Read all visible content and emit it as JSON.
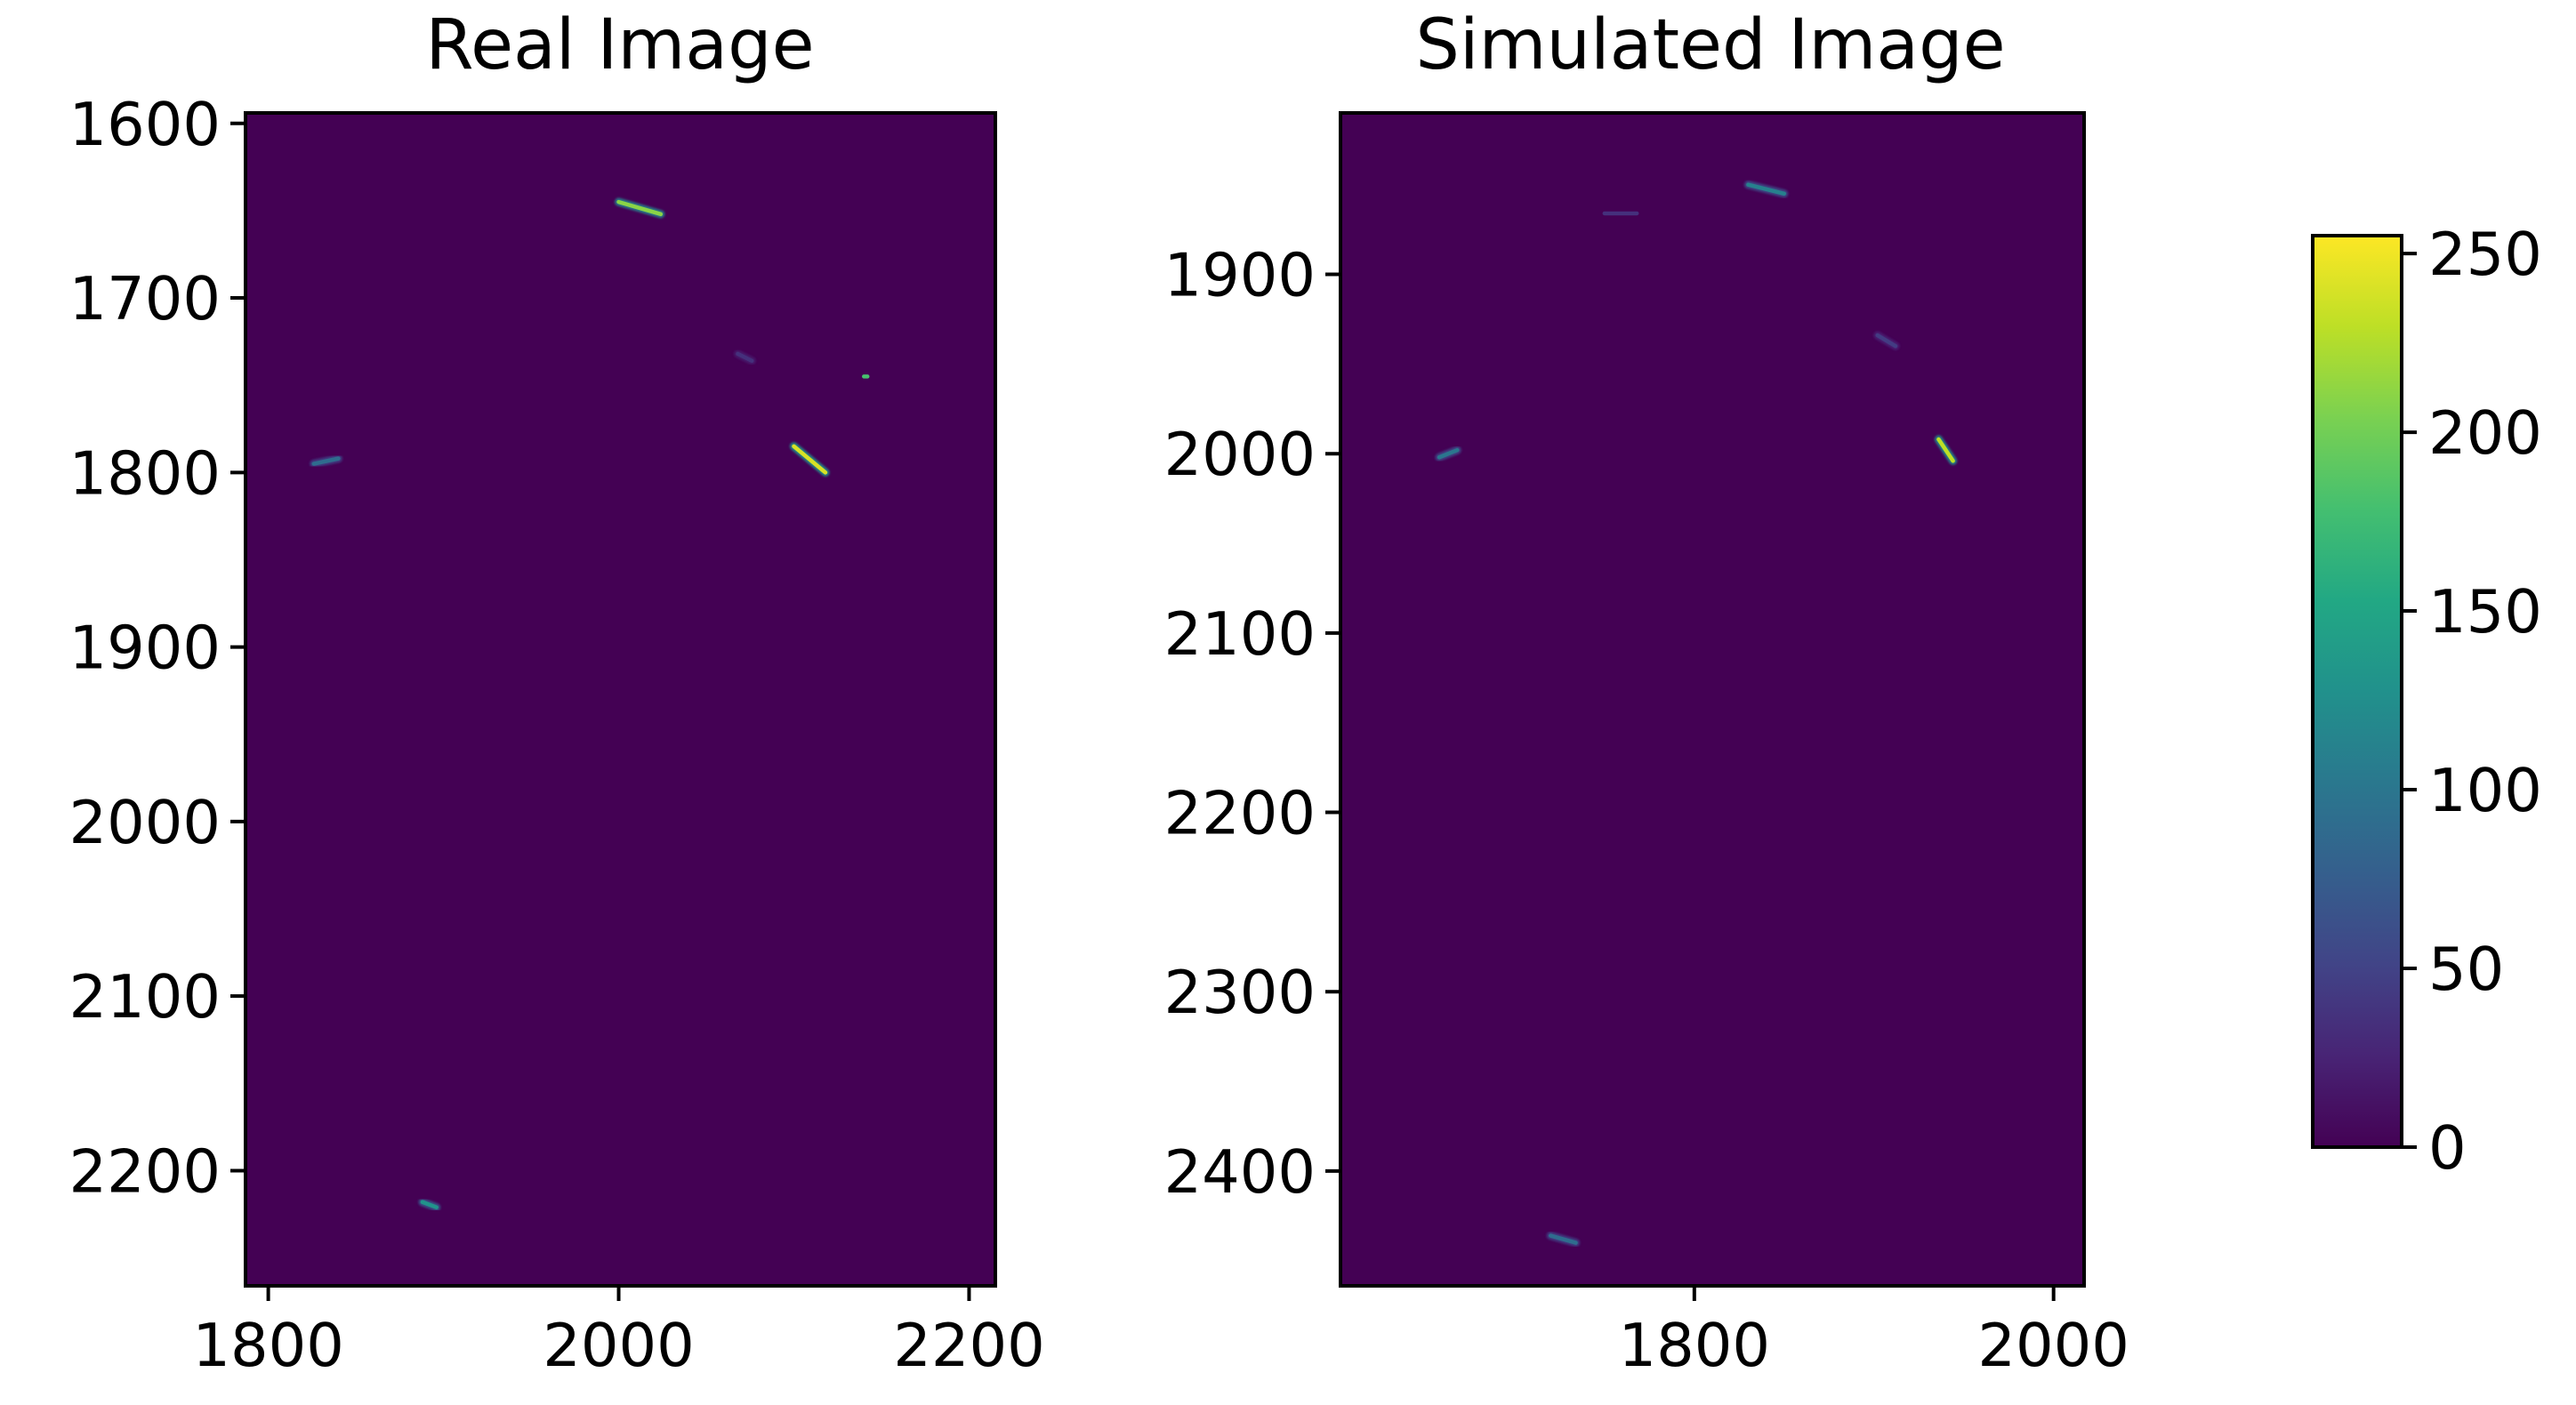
{
  "figure": {
    "colormap": "viridis",
    "background_color": "#440154",
    "colors": {
      "cmap_0": "#440154",
      "cmap_50": "#414487",
      "cmap_100": "#2a788e",
      "cmap_150": "#22a884",
      "cmap_200": "#7ad151",
      "cmap_250": "#fde725"
    }
  },
  "chart_data": [
    {
      "type": "heatmap",
      "title": "Real Image",
      "xlabel": "",
      "ylabel": "",
      "xlim": [
        1787,
        2215
      ],
      "ylim": [
        2266,
        1594
      ],
      "x_ticks": [
        1800,
        2000,
        2200
      ],
      "y_ticks": [
        1600,
        1700,
        1800,
        1900,
        2000,
        2100,
        2200
      ],
      "features": [
        {
          "x": 2000,
          "y": 1645,
          "dx": 24,
          "dy": 7,
          "intensity": 210
        },
        {
          "x": 2100,
          "y": 1785,
          "dx": 18,
          "dy": 15,
          "intensity": 240
        },
        {
          "x": 2140,
          "y": 1745,
          "dx": 2,
          "dy": 0,
          "intensity": 180
        },
        {
          "x": 1826,
          "y": 1795,
          "dx": 14,
          "dy": -3,
          "intensity": 90
        },
        {
          "x": 1888,
          "y": 2218,
          "dx": 8,
          "dy": 3,
          "intensity": 130
        },
        {
          "x": 2068,
          "y": 1732,
          "dx": 8,
          "dy": 4,
          "intensity": 35
        }
      ]
    },
    {
      "type": "heatmap",
      "title": "Simulated Image",
      "xlabel": "",
      "ylabel": "",
      "xlim": [
        1603,
        2017
      ],
      "ylim": [
        2464,
        1810
      ],
      "x_ticks": [
        1800,
        2000
      ],
      "y_ticks": [
        1900,
        2000,
        2100,
        2200,
        2300,
        2400
      ],
      "features": [
        {
          "x": 1830,
          "y": 1850,
          "dx": 20,
          "dy": 5,
          "intensity": 110
        },
        {
          "x": 1936,
          "y": 1992,
          "dx": 8,
          "dy": 12,
          "intensity": 230
        },
        {
          "x": 1658,
          "y": 2002,
          "dx": 10,
          "dy": -4,
          "intensity": 100
        },
        {
          "x": 1720,
          "y": 2436,
          "dx": 14,
          "dy": 4,
          "intensity": 90
        },
        {
          "x": 1902,
          "y": 1934,
          "dx": 10,
          "dy": 6,
          "intensity": 45
        },
        {
          "x": 1750,
          "y": 1866,
          "dx": 18,
          "dy": 0,
          "intensity": 35
        }
      ]
    }
  ],
  "colorbar": {
    "min": 0,
    "max": 255,
    "ticks": [
      0,
      50,
      100,
      150,
      200,
      250
    ]
  }
}
